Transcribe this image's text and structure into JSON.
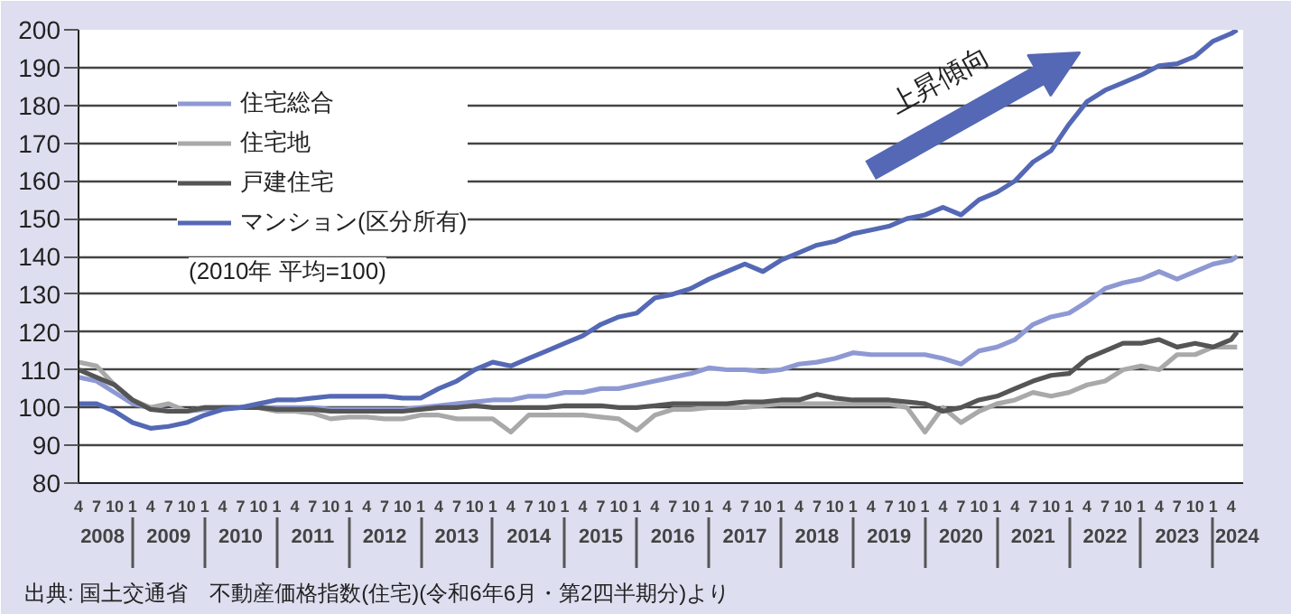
{
  "chart_data": {
    "type": "line",
    "annotations": [
      "上昇傾向",
      "(2010年 平均=100)",
      "出典: 国土交通省　不動産価格指数(住宅)(令和6年6月・第2四半期分)より"
    ],
    "x": [
      "2008-04",
      "2008-07",
      "2008-10",
      "2009-01",
      "2009-04",
      "2009-07",
      "2009-10",
      "2010-01",
      "2010-04",
      "2010-07",
      "2010-10",
      "2011-01",
      "2011-04",
      "2011-07",
      "2011-10",
      "2012-01",
      "2012-04",
      "2012-07",
      "2012-10",
      "2013-01",
      "2013-04",
      "2013-07",
      "2013-10",
      "2014-01",
      "2014-04",
      "2014-07",
      "2014-10",
      "2015-01",
      "2015-04",
      "2015-07",
      "2015-10",
      "2016-01",
      "2016-04",
      "2016-07",
      "2016-10",
      "2017-01",
      "2017-04",
      "2017-07",
      "2017-10",
      "2018-01",
      "2018-04",
      "2018-07",
      "2018-10",
      "2019-01",
      "2019-04",
      "2019-07",
      "2019-10",
      "2020-01",
      "2020-04",
      "2020-07",
      "2020-10",
      "2021-01",
      "2021-04",
      "2021-07",
      "2021-10",
      "2022-01",
      "2022-04",
      "2022-07",
      "2022-10",
      "2023-01",
      "2023-04",
      "2023-07",
      "2023-10",
      "2024-01",
      "2024-04",
      "2024-05"
    ],
    "series": [
      {
        "name": "住宅総合",
        "color": "#8e99d3",
        "values": [
          108,
          107,
          104,
          101,
          100,
          99,
          99,
          99.5,
          100,
          100,
          100,
          100,
          100,
          100,
          99.5,
          99.5,
          99.5,
          99.5,
          99.5,
          100,
          100.5,
          101,
          101.5,
          102,
          102,
          103,
          103,
          104,
          104,
          105,
          105,
          106,
          107,
          108,
          109,
          110.5,
          110,
          110,
          109.5,
          110,
          111.5,
          112,
          113,
          114.5,
          114,
          114,
          114,
          114,
          113,
          111.5,
          115,
          116,
          118,
          122,
          124,
          125,
          128,
          131.5,
          133,
          134,
          136,
          134,
          136,
          138,
          139,
          140
        ]
      },
      {
        "name": "住宅地",
        "color": "#a9a9a9",
        "values": [
          112,
          111,
          106,
          102,
          100,
          101,
          99,
          100,
          100,
          100,
          100,
          99,
          99,
          98.5,
          97,
          97.5,
          97.5,
          97,
          97,
          98,
          98,
          97,
          97,
          97,
          93.5,
          98,
          98,
          98,
          98,
          97.5,
          97,
          94,
          98,
          99.5,
          99.5,
          100,
          100,
          100,
          100.5,
          101,
          101,
          101,
          101,
          101,
          101,
          101,
          100,
          93.5,
          100,
          96,
          99,
          101,
          102,
          104,
          103,
          104,
          106,
          107,
          110,
          111,
          110,
          114,
          114,
          116,
          116,
          116
        ]
      },
      {
        "name": "戸建住宅",
        "color": "#555555",
        "values": [
          110,
          108,
          106,
          102,
          99.5,
          99,
          99,
          100,
          100,
          100,
          100,
          99.5,
          99.5,
          99.5,
          99,
          99,
          99,
          99,
          99,
          99.5,
          100,
          100,
          100.5,
          100,
          100,
          100,
          100,
          100.5,
          100.5,
          100.5,
          100,
          100,
          100.5,
          101,
          101,
          101,
          101,
          101.5,
          101.5,
          102,
          102,
          103.5,
          102.5,
          102,
          102,
          102,
          101.5,
          101,
          99,
          100,
          102,
          103,
          105,
          107,
          108.5,
          109,
          113,
          115,
          117,
          117,
          118,
          116,
          117,
          116,
          118,
          120
        ]
      },
      {
        "name": "マンション(区分所有)",
        "color": "#5468b5",
        "values": [
          101,
          101,
          99,
          96,
          94.5,
          95,
          96,
          98,
          99.5,
          100,
          101,
          102,
          102,
          102.5,
          103,
          103,
          103,
          103,
          102.5,
          102.5,
          105,
          107,
          110,
          112,
          111,
          113,
          115,
          117,
          119,
          122,
          124,
          125,
          129,
          130,
          131.5,
          134,
          136,
          138,
          136,
          139,
          141,
          143,
          144,
          146,
          147,
          148,
          150,
          151,
          153,
          151,
          155,
          157,
          160,
          165,
          168,
          175,
          181,
          184,
          186,
          188,
          190.5,
          191,
          193,
          197,
          199,
          200
        ]
      }
    ],
    "xlim": [
      "2008-04",
      "2024-06"
    ],
    "x2lim": [
      "2008-04",
      "2024-06"
    ],
    "ylim": [
      80,
      200
    ],
    "yticks": [
      80,
      90,
      100,
      110,
      120,
      130,
      140,
      150,
      160,
      170,
      180,
      190,
      200
    ],
    "xticks": [
      {
        "value": "2008-04",
        "label": "4"
      },
      {
        "value": "2008-07",
        "label": "7"
      },
      {
        "value": "2008-10",
        "label": "10"
      },
      {
        "value": "2009-01",
        "label": "1"
      },
      {
        "value": "2009-04",
        "label": "4"
      },
      {
        "value": "2009-07",
        "label": "7"
      },
      {
        "value": "2009-10",
        "label": "10"
      },
      {
        "value": "2010-01",
        "label": "1"
      },
      {
        "value": "2010-04",
        "label": "4"
      },
      {
        "value": "2010-07",
        "label": "7"
      },
      {
        "value": "2010-10",
        "label": "10"
      },
      {
        "value": "2011-01",
        "label": "1"
      },
      {
        "value": "2011-04",
        "label": "4"
      },
      {
        "value": "2011-07",
        "label": "7"
      },
      {
        "value": "2011-10",
        "label": "10"
      },
      {
        "value": "2012-01",
        "label": "1"
      },
      {
        "value": "2012-04",
        "label": "4"
      },
      {
        "value": "2012-07",
        "label": "7"
      },
      {
        "value": "2012-10",
        "label": "10"
      },
      {
        "value": "2013-01",
        "label": "1"
      },
      {
        "value": "2013-04",
        "label": "4"
      },
      {
        "value": "2013-07",
        "label": "7"
      },
      {
        "value": "2013-10",
        "label": "10"
      },
      {
        "value": "2014-01",
        "label": "1"
      },
      {
        "value": "2014-04",
        "label": "4"
      },
      {
        "value": "2014-07",
        "label": "7"
      },
      {
        "value": "2014-10",
        "label": "10"
      },
      {
        "value": "2015-01",
        "label": "1"
      },
      {
        "value": "2015-04",
        "label": "4"
      },
      {
        "value": "2015-07",
        "label": "7"
      },
      {
        "value": "2015-10",
        "label": "10"
      },
      {
        "value": "2016-01",
        "label": "1"
      },
      {
        "value": "2016-04",
        "label": "4"
      },
      {
        "value": "2016-07",
        "label": "7"
      },
      {
        "value": "2016-10",
        "label": "10"
      },
      {
        "value": "2017-01",
        "label": "1"
      },
      {
        "value": "2017-04",
        "label": "4"
      },
      {
        "value": "2017-07",
        "label": "7"
      },
      {
        "value": "2017-10",
        "label": "10"
      },
      {
        "value": "2018-01",
        "label": "1"
      },
      {
        "value": "2018-04",
        "label": "4"
      },
      {
        "value": "2018-07",
        "label": "7"
      },
      {
        "value": "2018-10",
        "label": "10"
      },
      {
        "value": "2019-01",
        "label": "1"
      },
      {
        "value": "2019-04",
        "label": "4"
      },
      {
        "value": "2019-07",
        "label": "7"
      },
      {
        "value": "2019-10",
        "label": "10"
      },
      {
        "value": "2020-01",
        "label": "1"
      },
      {
        "value": "2020-04",
        "label": "4"
      },
      {
        "value": "2020-07",
        "label": "7"
      },
      {
        "value": "2020-10",
        "label": "10"
      },
      {
        "value": "2021-01",
        "label": "1"
      },
      {
        "value": "2021-04",
        "label": "4"
      },
      {
        "value": "2021-07",
        "label": "7"
      },
      {
        "value": "2021-10",
        "label": "10"
      },
      {
        "value": "2022-01",
        "label": "1"
      },
      {
        "value": "2022-04",
        "label": "4"
      },
      {
        "value": "2022-07",
        "label": "7"
      },
      {
        "value": "2022-10",
        "label": "10"
      },
      {
        "value": "2023-01",
        "label": "1"
      },
      {
        "value": "2023-04",
        "label": "4"
      },
      {
        "value": "2023-07",
        "label": "7"
      },
      {
        "value": "2023-10",
        "label": "10"
      },
      {
        "value": "2024-01",
        "label": "1"
      },
      {
        "value": "2024-04",
        "label": "4"
      }
    ],
    "x2ticks": [
      {
        "value": "2008-08",
        "label": "2008"
      },
      {
        "value": "2009-07",
        "label": "2009"
      },
      {
        "value": "2010-07",
        "label": "2010"
      },
      {
        "value": "2011-07",
        "label": "2011"
      },
      {
        "value": "2012-07",
        "label": "2012"
      },
      {
        "value": "2013-07",
        "label": "2013"
      },
      {
        "value": "2014-07",
        "label": "2014"
      },
      {
        "value": "2015-07",
        "label": "2015"
      },
      {
        "value": "2016-07",
        "label": "2016"
      },
      {
        "value": "2017-07",
        "label": "2017"
      },
      {
        "value": "2018-07",
        "label": "2018"
      },
      {
        "value": "2019-07",
        "label": "2019"
      },
      {
        "value": "2020-07",
        "label": "2020"
      },
      {
        "value": "2021-07",
        "label": "2021"
      },
      {
        "value": "2022-07",
        "label": "2022"
      },
      {
        "value": "2023-07",
        "label": "2023"
      },
      {
        "value": "2024-05",
        "label": "2024"
      }
    ],
    "grid": "y",
    "legend": "top left"
  }
}
